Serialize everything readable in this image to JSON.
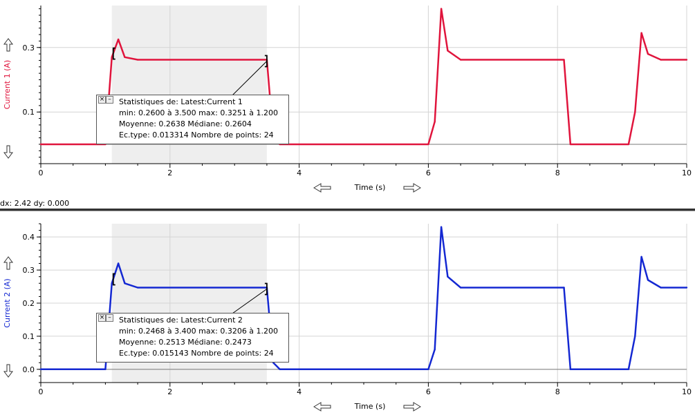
{
  "chart_data": [
    {
      "type": "line",
      "xlabel": "Time (s)",
      "ylabel": "Current 1 (A)",
      "xlim": [
        0,
        10
      ],
      "ylim": [
        -0.06,
        0.43
      ],
      "xticks": [
        0,
        2,
        4,
        6,
        8,
        10
      ],
      "yticks": [
        0.1,
        0.3
      ],
      "ytick_labels": [
        "0.1",
        "0.3"
      ],
      "grid": true,
      "series_color": "#e0143c",
      "selection": {
        "x_start": 1.1,
        "x_end": 3.5
      },
      "series": [
        {
          "x": [
            0,
            1.0,
            1.1,
            1.2,
            1.3,
            1.5,
            3.5,
            3.6,
            3.7,
            6.0,
            6.1,
            6.2,
            6.3,
            6.5,
            8.1,
            8.2,
            9.1,
            9.2,
            9.3,
            9.4,
            9.6,
            10.0
          ],
          "values": [
            0,
            0,
            0.27,
            0.325,
            0.27,
            0.262,
            0.262,
            0.02,
            0,
            0,
            0.07,
            0.42,
            0.29,
            0.262,
            0.262,
            0,
            0,
            0.1,
            0.345,
            0.28,
            0.262,
            0.262
          ]
        }
      ],
      "stats": {
        "title": "Statistiques de: Latest:Current 1",
        "line1": "min: 0.2600 à 3.500 max: 0.3251 à 1.200",
        "line2": "Moyenne: 0.2638 Médiane: 0.2604",
        "line3": "Ec.type: 0.013314 Nombre de points: 24"
      }
    },
    {
      "type": "line",
      "xlabel": "Time (s)",
      "ylabel": "Current 2 (A)",
      "xlim": [
        0,
        10
      ],
      "ylim": [
        -0.04,
        0.44
      ],
      "xticks": [
        0,
        2,
        4,
        6,
        8,
        10
      ],
      "yticks": [
        0.0,
        0.1,
        0.2,
        0.3,
        0.4
      ],
      "ytick_labels": [
        "0.0",
        "0.1",
        "0.2",
        "0.3",
        "0.4"
      ],
      "grid": true,
      "series_color": "#1428d2",
      "selection": {
        "x_start": 1.1,
        "x_end": 3.5
      },
      "series": [
        {
          "x": [
            0,
            1.0,
            1.1,
            1.2,
            1.3,
            1.5,
            3.5,
            3.6,
            3.7,
            6.0,
            6.1,
            6.2,
            6.3,
            6.5,
            8.1,
            8.2,
            9.1,
            9.2,
            9.3,
            9.4,
            9.6,
            10.0
          ],
          "values": [
            0,
            0,
            0.26,
            0.32,
            0.26,
            0.247,
            0.247,
            0.02,
            0,
            0,
            0.06,
            0.43,
            0.28,
            0.247,
            0.247,
            0,
            0,
            0.1,
            0.34,
            0.27,
            0.247,
            0.247
          ]
        }
      ],
      "stats": {
        "title": "Statistiques de: Latest:Current 2",
        "line1": "min: 0.2468 à 3.400 max: 0.3206 à 1.200",
        "line2": "Moyenne: 0.2513 Médiane: 0.2473",
        "line3": "Ec.type: 0.015143 Nombre de points: 24"
      }
    }
  ],
  "status": {
    "dxdy": "dx: 2.42 dy: 0.000"
  },
  "icons": {
    "up_arrow": "up-arrow-icon",
    "down_arrow": "down-arrow-icon",
    "left_arrow": "left-arrow-icon",
    "right_arrow": "right-arrow-icon"
  }
}
